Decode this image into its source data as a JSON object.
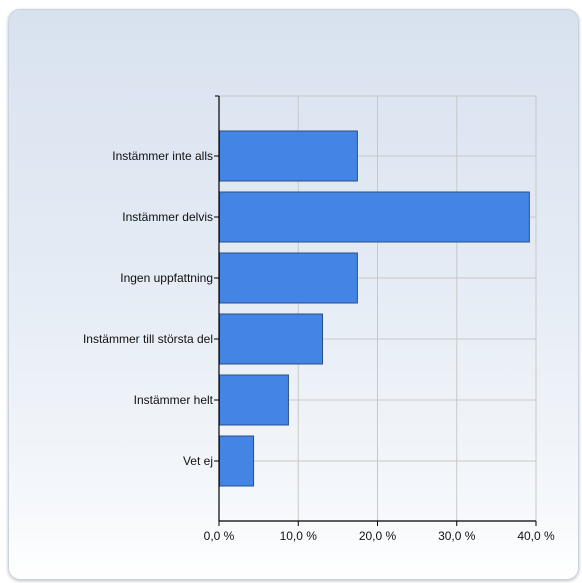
{
  "chart_data": {
    "type": "bar",
    "orientation": "horizontal",
    "title": "",
    "xlabel": "",
    "ylabel": "",
    "categories": [
      "Instämmer inte alls",
      "Instämmer delvis",
      "Ingen uppfattning",
      "Instämmer till största del",
      "Instämmer helt",
      "Vet ej"
    ],
    "values": [
      17.4,
      39.1,
      17.4,
      13.0,
      8.7,
      4.3
    ],
    "xlim": [
      0,
      40
    ],
    "xticks": [
      0,
      10,
      20,
      30,
      40
    ],
    "xtick_labels": [
      "0,0 %",
      "10,0 %",
      "20,0 %",
      "30,0 %",
      "40,0 %"
    ],
    "grid": "vertical",
    "legend": "none",
    "colors": {
      "bar": "#4285e4",
      "bar_edge": "#2a4f86",
      "grid": "#c8c8c8",
      "axis": "#000000"
    }
  }
}
